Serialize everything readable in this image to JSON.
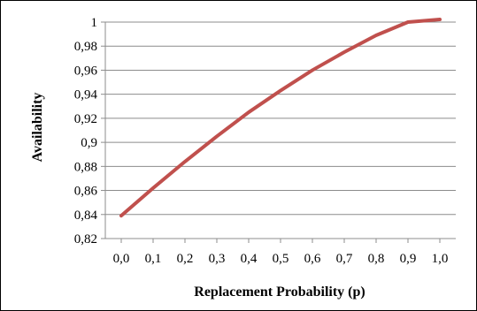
{
  "chart_data": {
    "type": "line",
    "xlabel": "Replacement Probability (p)",
    "ylabel": "Availability",
    "x_ticks": [
      "0,0",
      "0,1",
      "0,2",
      "0,3",
      "0,4",
      "0,5",
      "0,6",
      "0,7",
      "0,8",
      "0,9",
      "1,0"
    ],
    "y_ticks": [
      "0,82",
      "0,84",
      "0,86",
      "0,88",
      "0,9",
      "0,92",
      "0,94",
      "0,96",
      "0,98",
      "1"
    ],
    "xlim": [
      0.0,
      1.0
    ],
    "ylim": [
      0.82,
      1.0
    ],
    "grid": true,
    "series": [
      {
        "color": "#C0504D",
        "x": [
          0.0,
          0.1,
          0.2,
          0.3,
          0.4,
          0.5,
          0.6,
          0.7,
          0.8,
          0.9,
          1.0
        ],
        "y": [
          0.839,
          0.862,
          0.884,
          0.905,
          0.925,
          0.943,
          0.96,
          0.975,
          0.989,
          1.0,
          1.009
        ]
      }
    ]
  }
}
